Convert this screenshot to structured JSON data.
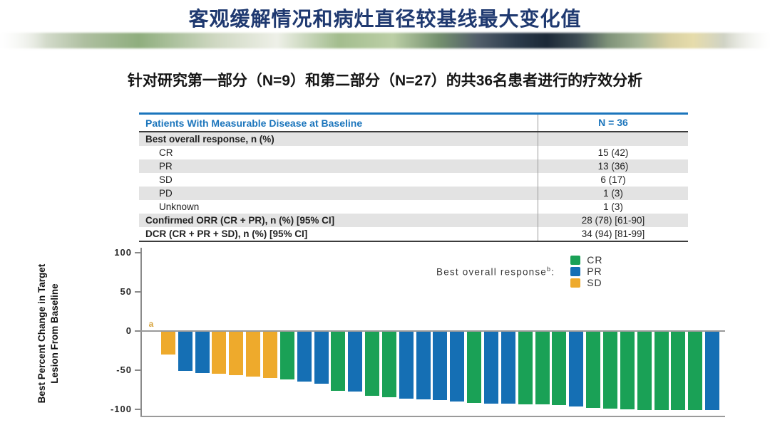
{
  "header": {
    "title": "客观缓解情况和病灶直径较基线最大变化值"
  },
  "subtitle": "针对研究第一部分（N=9）和第二部分（N=27）的共36名患者进行的疗效分析",
  "table": {
    "header": {
      "label": "Patients With Measurable Disease at Baseline",
      "value": "N = 36"
    },
    "rows": [
      {
        "label": "Best overall response, n (%)",
        "value": "",
        "bold": true,
        "indent": false,
        "shaded": true
      },
      {
        "label": "CR",
        "value": "15 (42)",
        "bold": false,
        "indent": true,
        "shaded": false
      },
      {
        "label": "PR",
        "value": "13 (36)",
        "bold": false,
        "indent": true,
        "shaded": true
      },
      {
        "label": "SD",
        "value": "6 (17)",
        "bold": false,
        "indent": true,
        "shaded": false
      },
      {
        "label": "PD",
        "value": "1 (3)",
        "bold": false,
        "indent": true,
        "shaded": true
      },
      {
        "label": "Unknown",
        "value": "1 (3)",
        "bold": false,
        "indent": true,
        "shaded": false
      },
      {
        "label": "Confirmed ORR (CR + PR), n (%) [95% CI]",
        "value": "28 (78) [61-90]",
        "bold": true,
        "indent": false,
        "shaded": true
      },
      {
        "label": "DCR (CR + PR + SD), n (%) [95% CI]",
        "value": "34 (94) [81-99]",
        "bold": true,
        "indent": false,
        "shaded": false
      }
    ]
  },
  "chart_data": {
    "type": "bar",
    "subtype": "waterfall",
    "ylabel": "Best Percent Change in Target Lesion From Baseline",
    "ylabel_lines": [
      "Best Percent Change in Target",
      "Lesion From Baseline"
    ],
    "ylim": [
      -110,
      105
    ],
    "yticks": [
      100,
      50,
      0,
      -50,
      -100
    ],
    "grid": false,
    "legend_position": "top-right",
    "legend_title": "Best overall response",
    "legend_title_superscript": "b",
    "legend_title_suffix": ":",
    "legend": [
      "CR",
      "PR",
      "SD"
    ],
    "colors": {
      "CR": "#1aa156",
      "PR": "#156fb4",
      "SD": "#eeaa2c"
    },
    "annotation": {
      "text": "a",
      "bar_index": 0,
      "color": "#d7a33c"
    },
    "bars": [
      {
        "response": "SD",
        "value": 0
      },
      {
        "response": "SD",
        "value": -29
      },
      {
        "response": "PR",
        "value": -50
      },
      {
        "response": "PR",
        "value": -53
      },
      {
        "response": "SD",
        "value": -54
      },
      {
        "response": "SD",
        "value": -55
      },
      {
        "response": "SD",
        "value": -57
      },
      {
        "response": "SD",
        "value": -59
      },
      {
        "response": "CR",
        "value": -61
      },
      {
        "response": "PR",
        "value": -64
      },
      {
        "response": "PR",
        "value": -66
      },
      {
        "response": "CR",
        "value": -75
      },
      {
        "response": "PR",
        "value": -76
      },
      {
        "response": "CR",
        "value": -82
      },
      {
        "response": "CR",
        "value": -84
      },
      {
        "response": "PR",
        "value": -85
      },
      {
        "response": "PR",
        "value": -86
      },
      {
        "response": "PR",
        "value": -87
      },
      {
        "response": "PR",
        "value": -89
      },
      {
        "response": "CR",
        "value": -91
      },
      {
        "response": "PR",
        "value": -92
      },
      {
        "response": "PR",
        "value": -92
      },
      {
        "response": "CR",
        "value": -93
      },
      {
        "response": "CR",
        "value": -93
      },
      {
        "response": "CR",
        "value": -94
      },
      {
        "response": "PR",
        "value": -95
      },
      {
        "response": "CR",
        "value": -97
      },
      {
        "response": "CR",
        "value": -98
      },
      {
        "response": "CR",
        "value": -99
      },
      {
        "response": "CR",
        "value": -100
      },
      {
        "response": "CR",
        "value": -100
      },
      {
        "response": "CR",
        "value": -100
      },
      {
        "response": "CR",
        "value": -100
      },
      {
        "response": "PR",
        "value": -100
      }
    ]
  }
}
